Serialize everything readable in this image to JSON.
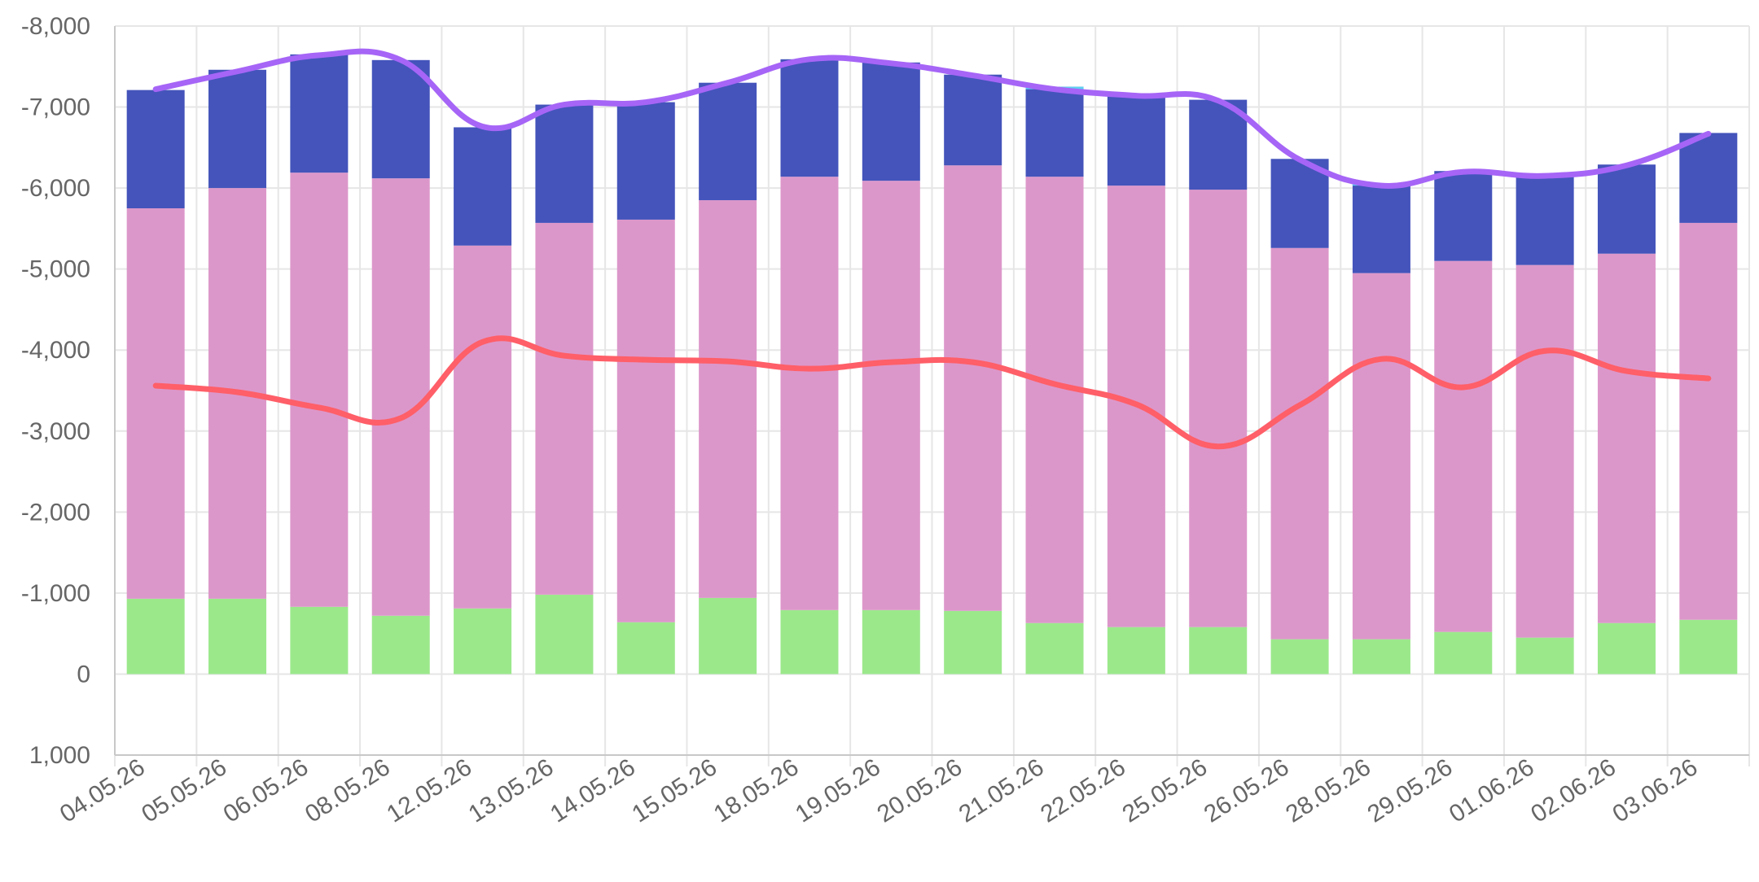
{
  "chart_data": {
    "type": "bar",
    "stacked": true,
    "y_axis": {
      "reversed": true,
      "ylim": [
        1000,
        -8000
      ],
      "ticks": [
        1000,
        0,
        -1000,
        -2000,
        -3000,
        -4000,
        -5000,
        -6000,
        -7000,
        -8000
      ],
      "tick_labels": [
        "1,000",
        "0",
        "-1,000",
        "-2,000",
        "-3,000",
        "-4,000",
        "-5,000",
        "-6,000",
        "-7,000",
        "-8,000"
      ]
    },
    "grid": true,
    "categories": [
      "04.05.26",
      "05.05.26",
      "06.05.26",
      "08.05.26",
      "12.05.26",
      "13.05.26",
      "14.05.26",
      "15.05.26",
      "18.05.26",
      "19.05.26",
      "20.05.26",
      "21.05.26",
      "22.05.26",
      "25.05.26",
      "26.05.26",
      "28.05.26",
      "29.05.26",
      "01.06.26",
      "02.06.26",
      "03.06.26"
    ],
    "series": [
      {
        "type": "bar",
        "color": "#9be88b",
        "values": [
          -930,
          -930,
          -830,
          -720,
          -810,
          -980,
          -640,
          -940,
          -790,
          -790,
          -780,
          -630,
          -580,
          -580,
          -430,
          -430,
          -520,
          -450,
          -630,
          -670
        ]
      },
      {
        "type": "bar",
        "color": "#dc97ca",
        "values": [
          -4820,
          -5070,
          -5360,
          -5400,
          -4480,
          -4590,
          -4970,
          -4910,
          -5350,
          -5300,
          -5500,
          -5510,
          -5450,
          -5400,
          -4830,
          -4520,
          -4580,
          -4600,
          -4560,
          -4900
        ]
      },
      {
        "type": "bar",
        "color": "#4454bb",
        "values": [
          -1460,
          -1460,
          -1460,
          -1460,
          -1460,
          -1460,
          -1450,
          -1450,
          -1450,
          -1460,
          -1120,
          -1110,
          -1110,
          -1110,
          -1100,
          -1110,
          -1110,
          -1110,
          -1100,
          -1110
        ]
      },
      {
        "type": "bar",
        "color": "#5bd3f0",
        "values": [
          0,
          0,
          0,
          0,
          0,
          0,
          0,
          0,
          0,
          0,
          0,
          30,
          0,
          0,
          0,
          30,
          0,
          0,
          0,
          0
        ]
      },
      {
        "type": "line",
        "color": "#a665f6",
        "values": [
          -7220,
          -7440,
          -7640,
          -7580,
          -6760,
          -7030,
          -7060,
          -7300,
          -7590,
          -7540,
          -7390,
          -7220,
          -7140,
          -7080,
          -6350,
          -6030,
          -6200,
          -6150,
          -6280,
          -6670
        ]
      },
      {
        "type": "line",
        "color": "#ff5f68",
        "values": [
          -3560,
          -3480,
          -3290,
          -3160,
          -4100,
          -3930,
          -3880,
          -3860,
          -3770,
          -3850,
          -3850,
          -3580,
          -3330,
          -2810,
          -3320,
          -3890,
          -3540,
          -3990,
          -3740,
          -3650
        ]
      }
    ]
  }
}
